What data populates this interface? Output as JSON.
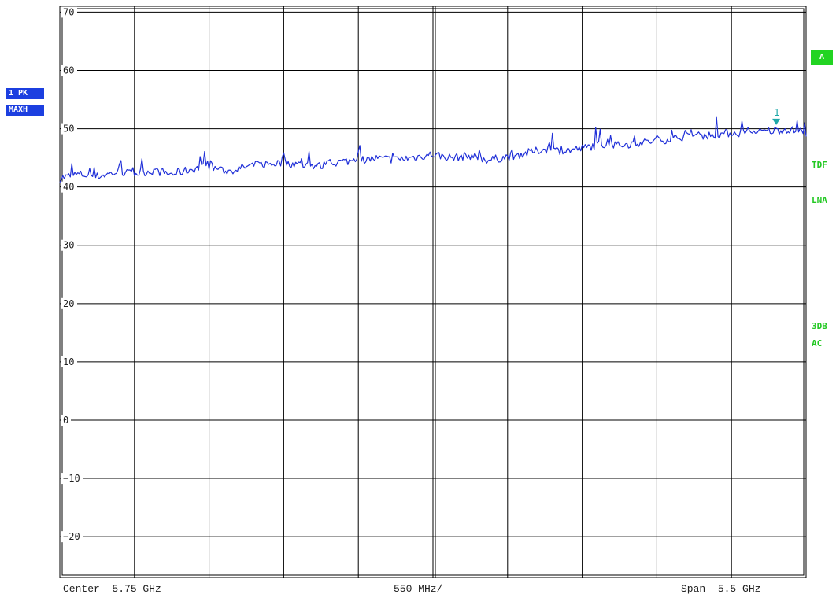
{
  "trace_badges": {
    "detector": "1 PK",
    "mode": "MAXH"
  },
  "right_annotations": {
    "screen_flag": "A",
    "tdf": "TDF",
    "lna": "LNA",
    "coupling_top": "3DB",
    "coupling_bottom": "AC"
  },
  "footer": {
    "center_label": "Center",
    "center_value": "5.75 GHz",
    "division": "550 MHz/",
    "span_label": "Span",
    "span_value": "5.5 GHz"
  },
  "colors": {
    "trace": "#1f2fd8",
    "marker": "#1fa8a8",
    "grid": "#000000",
    "flag_green": "#22d422"
  },
  "chart_data": {
    "type": "line",
    "x_divisions": 10,
    "ylim": [
      -27,
      71
    ],
    "y_ticks": [
      70,
      60,
      50,
      40,
      30,
      20,
      10,
      0,
      -10,
      -20
    ],
    "y_tick_labels": [
      "70",
      "60",
      "50",
      "40",
      "30",
      "20",
      "10",
      "0",
      "−10",
      "−20"
    ],
    "series": [
      {
        "x": [
          0,
          0.25,
          0.5,
          0.75,
          1,
          1.25,
          1.5,
          1.75,
          2,
          2.25,
          2.5,
          2.75,
          3,
          3.25,
          3.5,
          3.75,
          4,
          4.25,
          4.5,
          4.75,
          5,
          5.25,
          5.5,
          5.75,
          6,
          6.25,
          6.5,
          6.75,
          7,
          7.25,
          7.5,
          7.75,
          8,
          8.25,
          8.5,
          8.75,
          9,
          9.25,
          9.5,
          9.75,
          10
        ],
        "values": [
          41.5,
          42.2,
          41.8,
          42.5,
          42.3,
          42.8,
          42.2,
          43.0,
          43.6,
          42.6,
          43.5,
          43.9,
          44.2,
          43.8,
          43.6,
          44.3,
          44.6,
          44.9,
          44.7,
          45.1,
          45.6,
          45.0,
          45.4,
          44.6,
          45.2,
          45.8,
          46.5,
          46.2,
          46.6,
          47.4,
          47.1,
          47.6,
          47.9,
          48.4,
          48.8,
          48.9,
          49.3,
          49.2,
          49.6,
          49.9,
          49.3
        ]
      }
    ],
    "marker": {
      "label": "1",
      "x": 9.6,
      "y": 50.5
    },
    "grid": true
  }
}
